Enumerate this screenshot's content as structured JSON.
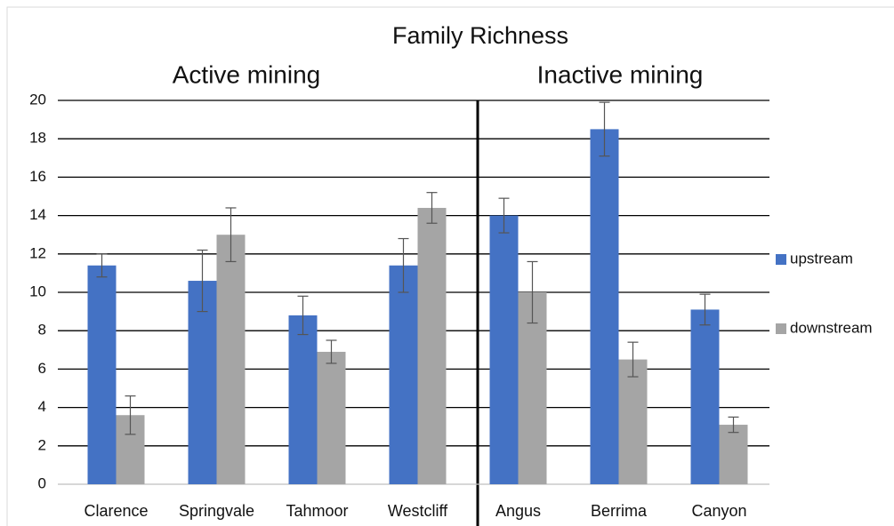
{
  "chart_data": {
    "type": "bar",
    "title": "Family Richness",
    "annotations": [
      "Active mining",
      "Inactive mining"
    ],
    "categories": [
      "Clarence",
      "Springvale",
      "Tahmoor",
      "Westcliff",
      "Angus",
      "Berrima",
      "Canyon"
    ],
    "series": [
      {
        "name": "upstream",
        "color": "#4472c4",
        "values": [
          11.4,
          10.6,
          8.8,
          11.4,
          14.0,
          18.5,
          9.1
        ],
        "errors": [
          0.6,
          1.6,
          1.0,
          1.4,
          0.9,
          1.4,
          0.8
        ]
      },
      {
        "name": "downstream",
        "color": "#a5a5a5",
        "values": [
          3.6,
          13.0,
          6.9,
          14.4,
          10.0,
          6.5,
          3.1
        ],
        "errors": [
          1.0,
          1.4,
          0.6,
          0.8,
          1.6,
          0.9,
          0.4
        ]
      }
    ],
    "ylim": [
      0,
      20
    ],
    "yticks": [
      0,
      2,
      4,
      6,
      8,
      10,
      12,
      14,
      16,
      18,
      20
    ],
    "grid": true,
    "legend": "right"
  }
}
